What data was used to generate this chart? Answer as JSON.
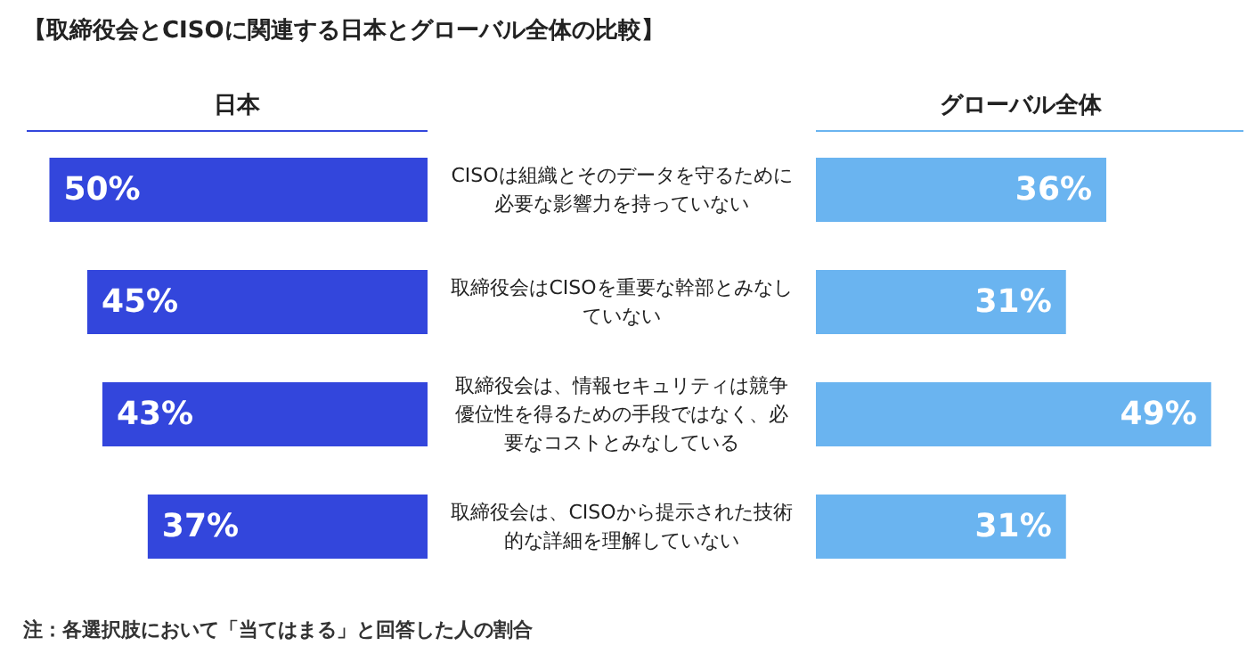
{
  "chart_data": [
    {
      "type": "bar",
      "orientation": "horizontal",
      "title": "【取締役会とCISOに関連する日本とグローバル全体の比較】",
      "subtitle": "日本",
      "categories": [
        "CISOは組織とそのデータを守るために必要な影響力を持っていない",
        "取締役会はCISOを重要な幹部とみなしていない",
        "取締役会は、情報セキュリティは競争優位性を得るための手段ではなく、必要なコストとみなしている",
        "取締役会は、CISOから提示された技術的な詳細を理解していない"
      ],
      "values": [
        50,
        45,
        43,
        37
      ],
      "value_labels": [
        "50%",
        "45%",
        "43%",
        "37%"
      ],
      "color": "#3346dc",
      "xlim": [
        53,
        0
      ],
      "tick_labels": "y",
      "annotations": [
        "注：各選択肢において「当てはまる」と回答した人の割合"
      ]
    },
    {
      "type": "bar",
      "orientation": "horizontal",
      "title": "グローバル全体",
      "categories": [
        null,
        null,
        null,
        null
      ],
      "values": [
        36,
        31,
        49,
        31
      ],
      "value_labels": [
        "36%",
        "31%",
        "49%",
        "31%"
      ],
      "color": "#6ab4f0",
      "xlim": [
        0,
        53
      ],
      "tick_labels": false
    }
  ]
}
